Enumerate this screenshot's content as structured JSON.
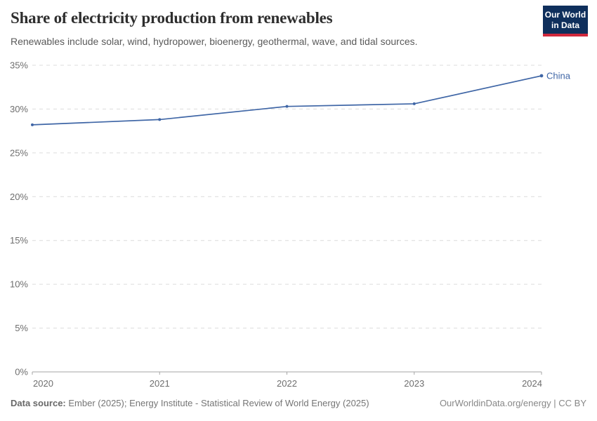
{
  "header": {
    "title": "Share of electricity production from renewables",
    "subtitle": "Renewables include solar, wind, hydropower, bioenergy, geothermal, wave, and tidal sources.",
    "logo": {
      "line1": "Our World",
      "line2": "in Data",
      "bg_color": "#0f2f5c",
      "accent_color": "#d0283c"
    }
  },
  "chart_data": {
    "type": "line",
    "title": "Share of electricity production from renewables",
    "subtitle": "Renewables include solar, wind, hydropower, bioenergy, geothermal, wave, and tidal sources.",
    "x": [
      "2020",
      "2021",
      "2022",
      "2023",
      "2024"
    ],
    "series": [
      {
        "name": "China",
        "color": "#3f66a6",
        "values": [
          28.2,
          28.8,
          30.3,
          30.6,
          33.8
        ]
      }
    ],
    "xlabel": "",
    "ylabel": "",
    "ylim": [
      0,
      35
    ],
    "ytick_step": 5,
    "ytick_labels": [
      "0%",
      "5%",
      "10%",
      "15%",
      "20%",
      "25%",
      "30%",
      "35%"
    ],
    "grid": "horizontal-dashed",
    "legend_position": "line-end"
  },
  "footer": {
    "source_label": "Data source:",
    "source_text": "Ember (2025); Energy Institute - Statistical Review of World Energy (2025)",
    "credit": "OurWorldinData.org/energy | CC BY"
  }
}
